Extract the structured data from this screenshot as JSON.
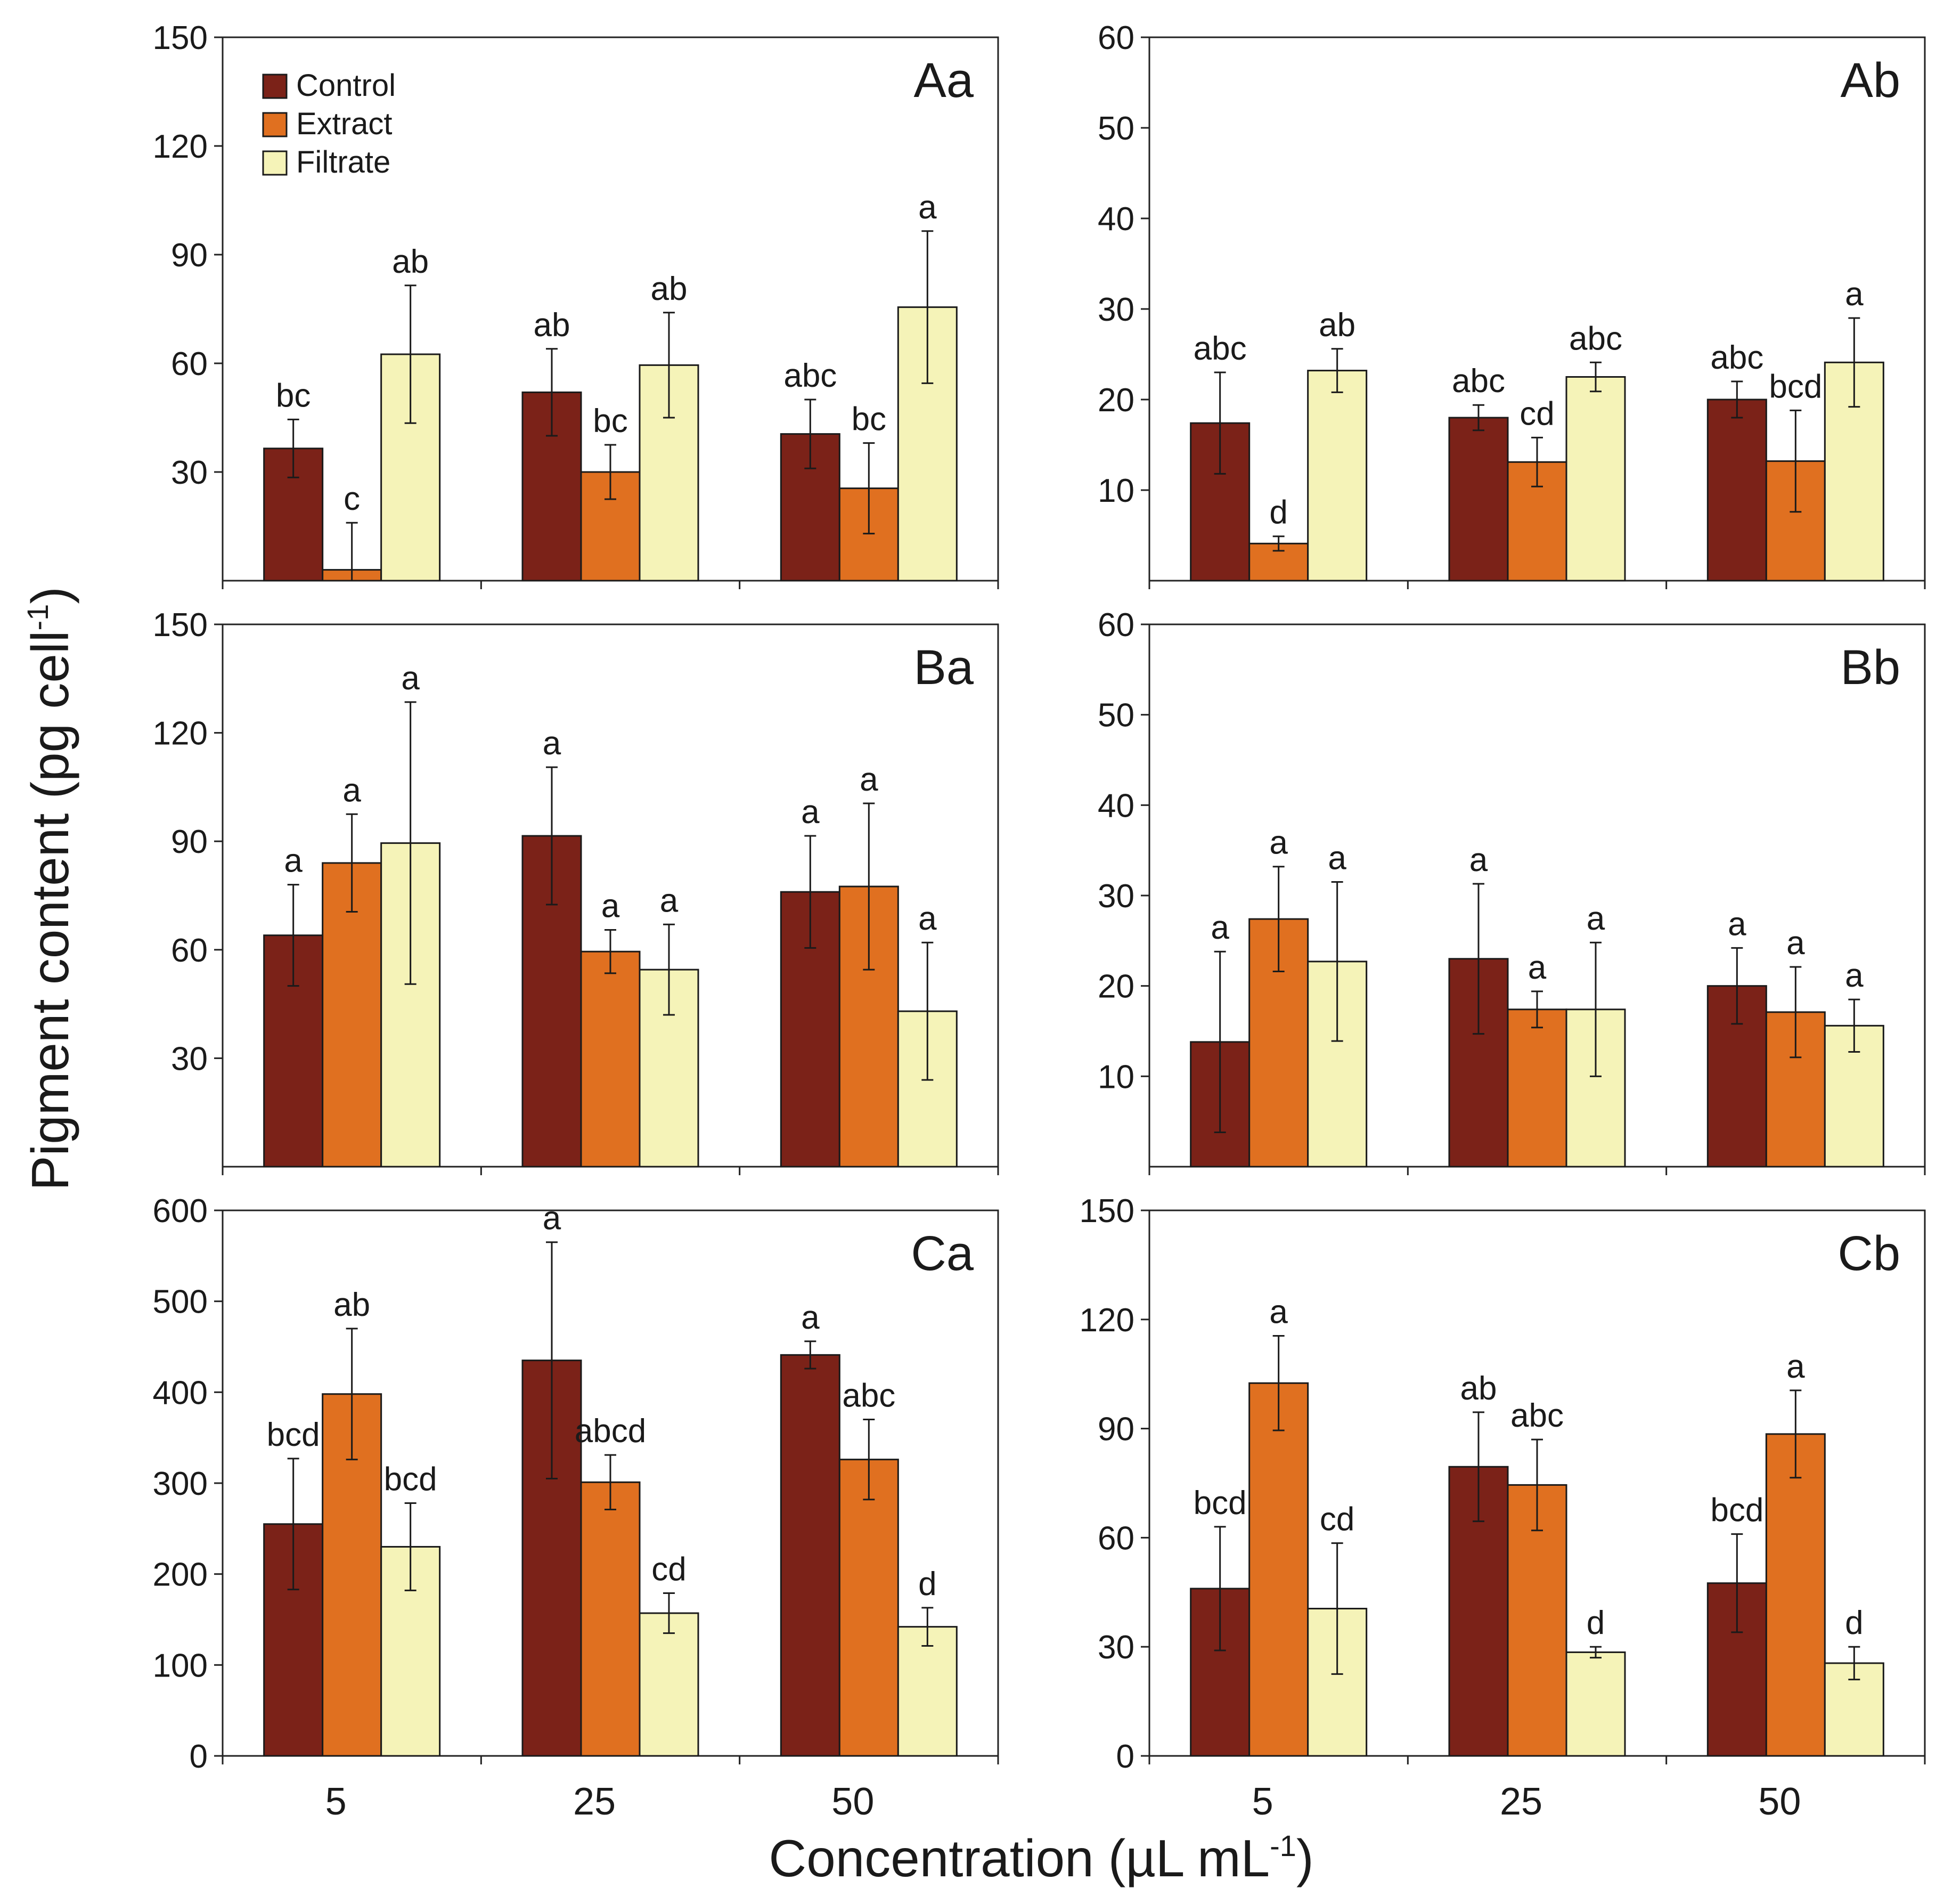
{
  "chart_data": [
    {
      "panel": "Aa",
      "type": "bar",
      "categories": [
        "5",
        "25",
        "50"
      ],
      "ylim": [
        0,
        150
      ],
      "yticks": [
        30,
        60,
        90,
        120,
        150
      ],
      "series": [
        {
          "name": "Control",
          "values": [
            36.5,
            52,
            40.5
          ],
          "errors": [
            8,
            12,
            9.5
          ],
          "letters": [
            "bc",
            "ab",
            "abc"
          ]
        },
        {
          "name": "Extract",
          "values": [
            3,
            30,
            25.5
          ],
          "errors": [
            13,
            7.5,
            12.5
          ],
          "letters": [
            "c",
            "bc",
            "bc"
          ]
        },
        {
          "name": "Filtrate",
          "values": [
            62.5,
            59.5,
            75.5
          ],
          "errors": [
            19,
            14.5,
            21
          ],
          "letters": [
            "ab",
            "ab",
            "a"
          ]
        }
      ]
    },
    {
      "panel": "Ab",
      "type": "bar",
      "categories": [
        "5",
        "25",
        "50"
      ],
      "ylim": [
        0,
        60
      ],
      "yticks": [
        10,
        20,
        30,
        40,
        50,
        60
      ],
      "series": [
        {
          "name": "Control",
          "values": [
            17.4,
            18,
            20
          ],
          "errors": [
            5.6,
            1.4,
            2
          ],
          "letters": [
            "abc",
            "abc",
            "abc"
          ]
        },
        {
          "name": "Extract",
          "values": [
            4.1,
            13.1,
            13.2
          ],
          "errors": [
            0.8,
            2.7,
            5.6
          ],
          "letters": [
            "d",
            "cd",
            "bcd"
          ]
        },
        {
          "name": "Filtrate",
          "values": [
            23.2,
            22.5,
            24.1
          ],
          "errors": [
            2.4,
            1.6,
            4.9
          ],
          "letters": [
            "ab",
            "abc",
            "a"
          ]
        }
      ]
    },
    {
      "panel": "Ba",
      "type": "bar",
      "categories": [
        "5",
        "25",
        "50"
      ],
      "ylim": [
        0,
        150
      ],
      "yticks": [
        30,
        60,
        90,
        120,
        150
      ],
      "series": [
        {
          "name": "Control",
          "values": [
            64,
            91.5,
            76
          ],
          "errors": [
            14,
            19,
            15.5
          ],
          "letters": [
            "a",
            "a",
            "a"
          ]
        },
        {
          "name": "Extract",
          "values": [
            84,
            59.5,
            77.5
          ],
          "errors": [
            13.5,
            6,
            23
          ],
          "letters": [
            "a",
            "a",
            "a"
          ]
        },
        {
          "name": "Filtrate",
          "values": [
            89.5,
            54.5,
            43
          ],
          "errors": [
            39,
            12.5,
            19
          ],
          "letters": [
            "a",
            "a",
            "a"
          ]
        }
      ]
    },
    {
      "panel": "Bb",
      "type": "bar",
      "categories": [
        "5",
        "25",
        "50"
      ],
      "ylim": [
        0,
        60
      ],
      "yticks": [
        10,
        20,
        30,
        40,
        50,
        60
      ],
      "series": [
        {
          "name": "Control",
          "values": [
            13.8,
            23,
            20
          ],
          "errors": [
            10,
            8.3,
            4.2
          ],
          "letters": [
            "a",
            "a",
            "a"
          ]
        },
        {
          "name": "Extract",
          "values": [
            27.4,
            17.4,
            17.1
          ],
          "errors": [
            5.8,
            2,
            5
          ],
          "letters": [
            "a",
            "a",
            "a"
          ]
        },
        {
          "name": "Filtrate",
          "values": [
            22.7,
            17.4,
            15.6
          ],
          "errors": [
            8.8,
            7.4,
            2.9
          ],
          "letters": [
            "a",
            "a",
            "a"
          ]
        }
      ]
    },
    {
      "panel": "Ca",
      "type": "bar",
      "categories": [
        "5",
        "25",
        "50"
      ],
      "ylim": [
        0,
        600
      ],
      "yticks": [
        0,
        100,
        200,
        300,
        400,
        500,
        600
      ],
      "series": [
        {
          "name": "Control",
          "values": [
            255,
            435,
            441
          ],
          "errors": [
            72,
            130,
            15
          ],
          "letters": [
            "bcd",
            "a",
            "a"
          ]
        },
        {
          "name": "Extract",
          "values": [
            398,
            301,
            326
          ],
          "errors": [
            72,
            30,
            44
          ],
          "letters": [
            "ab",
            "abcd",
            "abc"
          ]
        },
        {
          "name": "Filtrate",
          "values": [
            230,
            157,
            142
          ],
          "errors": [
            48,
            22,
            21
          ],
          "letters": [
            "bcd",
            "cd",
            "d"
          ]
        }
      ]
    },
    {
      "panel": "Cb",
      "type": "bar",
      "categories": [
        "5",
        "25",
        "50"
      ],
      "ylim": [
        0,
        150
      ],
      "yticks": [
        0,
        30,
        60,
        90,
        120,
        150
      ],
      "series": [
        {
          "name": "Control",
          "values": [
            46,
            79.5,
            47.5
          ],
          "errors": [
            17,
            15,
            13.5
          ],
          "letters": [
            "bcd",
            "ab",
            "bcd"
          ]
        },
        {
          "name": "Extract",
          "values": [
            102.5,
            74.5,
            88.5
          ],
          "errors": [
            13,
            12.5,
            12
          ],
          "letters": [
            "a",
            "abc",
            "a"
          ]
        },
        {
          "name": "Filtrate",
          "values": [
            40.5,
            28.5,
            25.5
          ],
          "errors": [
            18,
            1.5,
            4.5
          ],
          "letters": [
            "cd",
            "d",
            "d"
          ]
        }
      ]
    }
  ],
  "legend": {
    "items": [
      "Control",
      "Extract",
      "Filtrate"
    ],
    "placement": "top-left of panel Aa"
  },
  "colors": {
    "Control": "#7b2218",
    "Extract": "#e07020",
    "Filtrate": "#f5f3b8"
  },
  "axis": {
    "ylabel_main": "Pigment content (pg cell",
    "ylabel_sup": "-1",
    "ylabel_end": ")",
    "xlabel_main": "Concentration (µL mL",
    "xlabel_sup": "-1",
    "xlabel_end": ")"
  }
}
